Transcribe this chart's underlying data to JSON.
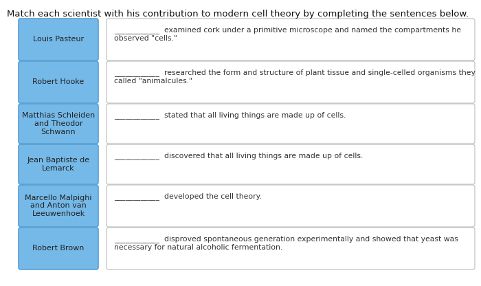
{
  "title": "Match each scientist with his contribution to modern cell theory by completing the sentences below.",
  "title_fontsize": 9.5,
  "background_color": "#ffffff",
  "scientists": [
    "Louis Pasteur",
    "Robert Hooke",
    "Matthias Schleiden\nand Theodor\nSchwann",
    "Jean Baptiste de\nLemarck",
    "Marcello Malpighi\nand Anton van\nLeeuwenhoek",
    "Robert Brown"
  ],
  "descriptions": [
    "____________  examined cork under a primitive microscope and named the compartments he\nobserved \"cells.\"",
    "____________  researched the form and structure of plant tissue and single-celled organisms they\ncalled \"animalcules.\"",
    "____________  stated that all living things are made up of cells.",
    "____________  discovered that all living things are made up of cells.",
    "____________  developed the cell theory.",
    "____________  disproved spontaneous generation experimentally and showed that yeast was\nnecessary for natural alcoholic fermentation."
  ],
  "box_bg": "#74b9e8",
  "box_border": "#5a9fd4",
  "desc_border": "#bbbbbb",
  "text_color": "#333333",
  "scientist_text_color": "#222222",
  "font_size_scientist": 8.0,
  "font_size_desc": 7.8,
  "font_size_title": 9.5
}
